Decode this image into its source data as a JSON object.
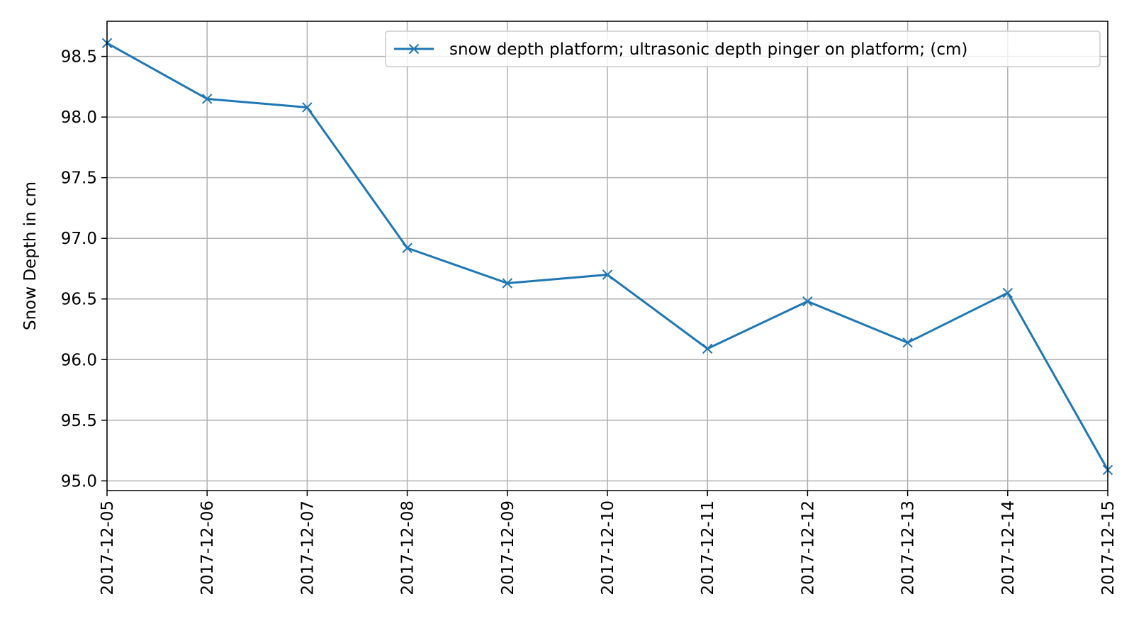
{
  "chart_data": {
    "type": "line",
    "title": "",
    "xlabel": "",
    "ylabel": "Snow Depth in cm",
    "x": [
      "2017-12-05",
      "2017-12-06",
      "2017-12-07",
      "2017-12-08",
      "2017-12-09",
      "2017-12-10",
      "2017-12-11",
      "2017-12-12",
      "2017-12-13",
      "2017-12-14",
      "2017-12-15"
    ],
    "series": [
      {
        "name": "snow depth  platform;  ultrasonic depth pinger on platform; (cm)",
        "values": [
          98.61,
          98.15,
          98.08,
          96.92,
          96.63,
          96.7,
          96.09,
          96.48,
          96.14,
          96.55,
          95.09
        ],
        "color": "#1f77b4",
        "marker": "x"
      }
    ],
    "ylim": [
      94.92,
      98.79
    ],
    "yticks": [
      "95.0",
      "95.5",
      "96.0",
      "96.5",
      "97.0",
      "97.5",
      "98.0",
      "98.5"
    ],
    "xticks": [
      "2017-12-05",
      "2017-12-06",
      "2017-12-07",
      "2017-12-08",
      "2017-12-09",
      "2017-12-10",
      "2017-12-11",
      "2017-12-12",
      "2017-12-13",
      "2017-12-14",
      "2017-12-15"
    ],
    "grid": true,
    "legend_position": "top-right"
  }
}
